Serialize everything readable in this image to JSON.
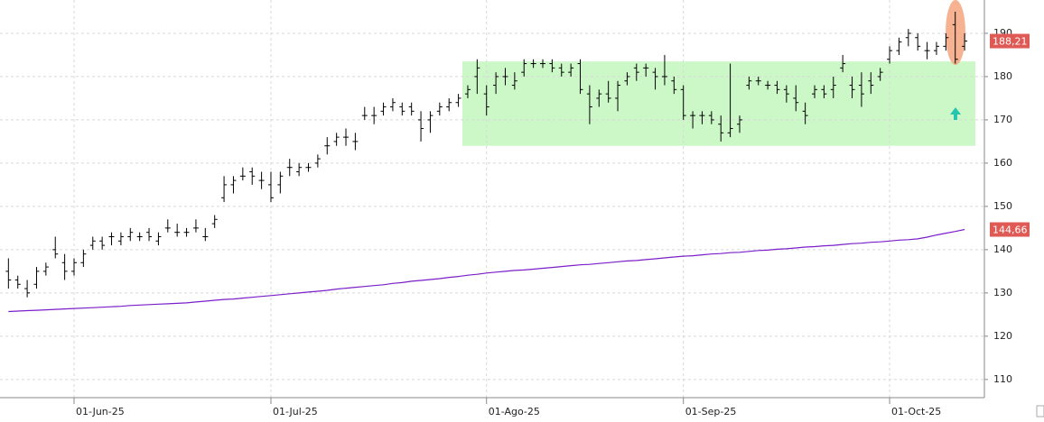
{
  "chart_data": {
    "type": "ohlc",
    "categories": [
      null,
      null,
      null,
      null,
      null,
      null,
      null,
      "01-Jun-25",
      null,
      null,
      null,
      null,
      null,
      null,
      null,
      null,
      null,
      null,
      null,
      null,
      null,
      null,
      null,
      null,
      null,
      null,
      null,
      null,
      "01-Jul-25",
      null,
      null,
      null,
      null,
      null,
      null,
      null,
      null,
      null,
      null,
      null,
      null,
      null,
      null,
      null,
      null,
      null,
      null,
      null,
      null,
      null,
      null,
      "01-Ago-25",
      null,
      null,
      null,
      null,
      null,
      null,
      null,
      null,
      null,
      null,
      null,
      null,
      null,
      null,
      null,
      null,
      null,
      null,
      null,
      null,
      "01-Sep-25",
      null,
      null,
      null,
      null,
      null,
      null,
      null,
      null,
      null,
      null,
      null,
      null,
      null,
      null,
      null,
      null,
      null,
      null,
      null,
      null,
      null,
      "01-Oct-25",
      null,
      null,
      null,
      null,
      null,
      null,
      null,
      null
    ],
    "open": [
      135,
      133,
      131,
      132,
      135,
      140,
      137,
      135,
      137,
      141,
      142,
      143,
      142,
      143,
      143,
      144,
      142,
      145,
      144,
      144,
      145,
      143,
      146,
      152,
      155,
      157,
      158,
      156,
      155,
      155,
      159,
      158,
      159,
      160,
      164,
      165,
      166,
      165,
      171,
      171,
      172,
      173,
      173,
      173,
      170,
      170,
      172,
      173,
      174,
      176,
      180,
      176,
      178,
      180,
      178,
      181,
      183,
      183,
      183,
      182,
      181,
      183,
      176,
      175,
      176,
      175,
      179,
      182,
      182,
      181,
      180,
      179,
      177,
      171,
      171,
      171,
      169,
      167,
      169,
      178,
      179,
      178,
      178,
      177,
      175,
      172,
      176,
      177,
      177,
      182,
      178,
      178,
      179,
      180,
      184,
      186,
      189,
      189,
      186,
      186,
      187,
      192,
      187
    ],
    "high": [
      138,
      134,
      133,
      136,
      137,
      143,
      139,
      138,
      140,
      143,
      143,
      144,
      144,
      145,
      144,
      145,
      144,
      147,
      146,
      145,
      147,
      145,
      148,
      157,
      157,
      159,
      159,
      158,
      158,
      158,
      161,
      160,
      160,
      162,
      166,
      167,
      168,
      167,
      173,
      173,
      174,
      175,
      174,
      174,
      172,
      172,
      174,
      175,
      176,
      178,
      184,
      178,
      181,
      182,
      181,
      184,
      184,
      184,
      184,
      183,
      183,
      184,
      178,
      177,
      179,
      179,
      181,
      183,
      183,
      182,
      185,
      180,
      178,
      172,
      172,
      172,
      171,
      183,
      171,
      180,
      180,
      179,
      179,
      178,
      178,
      174,
      178,
      178,
      180,
      185,
      180,
      181,
      181,
      182,
      187,
      189,
      191,
      190,
      188,
      188,
      190,
      195,
      190
    ],
    "low": [
      131,
      131,
      129,
      131,
      134,
      138,
      133,
      134,
      136,
      140,
      140,
      141,
      141,
      142,
      142,
      142,
      141,
      144,
      143,
      143,
      144,
      142,
      145,
      151,
      153,
      156,
      155,
      154,
      151,
      153,
      157,
      157,
      158,
      159,
      162,
      164,
      164,
      163,
      170,
      169,
      171,
      172,
      171,
      171,
      165,
      167,
      171,
      172,
      173,
      175,
      176,
      171,
      176,
      178,
      177,
      180,
      182,
      182,
      181,
      180,
      180,
      176,
      169,
      173,
      174,
      172,
      178,
      179,
      180,
      177,
      178,
      176,
      170,
      168,
      169,
      169,
      165,
      166,
      167,
      177,
      178,
      177,
      176,
      174,
      172,
      169,
      175,
      175,
      175,
      181,
      175,
      173,
      176,
      179,
      183,
      185,
      187,
      186,
      184,
      185,
      186,
      183,
      186
    ],
    "close": [
      133,
      132,
      130,
      135,
      136,
      139,
      135,
      137,
      139,
      142,
      141,
      143,
      143,
      144,
      143,
      143,
      143,
      145,
      144,
      144,
      145,
      143,
      147,
      155,
      156,
      157,
      157,
      156,
      152,
      157,
      159,
      159,
      159,
      161,
      164,
      166,
      166,
      165,
      171,
      171,
      173,
      174,
      172,
      172,
      168,
      171,
      173,
      174,
      175,
      177,
      182,
      173,
      180,
      180,
      179,
      183,
      183,
      183,
      182,
      181,
      182,
      177,
      173,
      176,
      175,
      178,
      180,
      181,
      182,
      180,
      180,
      177,
      171,
      171,
      171,
      170,
      167,
      168,
      170,
      179,
      179,
      178,
      177,
      176,
      174,
      171,
      177,
      176,
      178,
      183,
      177,
      176,
      178,
      181,
      186,
      188,
      190,
      187,
      186,
      187,
      189,
      184,
      188.21
    ],
    "color": "#000000",
    "moving_average": {
      "color": "#7a1fc9",
      "values": [
        125.7,
        125.8,
        125.9,
        126.0,
        126.1,
        126.2,
        126.3,
        126.4,
        126.5,
        126.6,
        126.7,
        126.8,
        126.9,
        127.1,
        127.2,
        127.3,
        127.4,
        127.5,
        127.6,
        127.7,
        127.9,
        128.1,
        128.3,
        128.5,
        128.6,
        128.8,
        129.0,
        129.2,
        129.4,
        129.6,
        129.8,
        130.0,
        130.2,
        130.4,
        130.6,
        130.9,
        131.1,
        131.3,
        131.5,
        131.7,
        131.9,
        132.2,
        132.4,
        132.7,
        132.9,
        133.1,
        133.3,
        133.6,
        133.8,
        134.1,
        134.3,
        134.6,
        134.8,
        135.0,
        135.2,
        135.3,
        135.5,
        135.7,
        135.9,
        136.1,
        136.3,
        136.5,
        136.6,
        136.8,
        137.0,
        137.2,
        137.4,
        137.5,
        137.7,
        137.9,
        138.1,
        138.3,
        138.5,
        138.6,
        138.8,
        139.0,
        139.1,
        139.3,
        139.4,
        139.6,
        139.8,
        139.9,
        140.1,
        140.2,
        140.4,
        140.6,
        140.7,
        140.9,
        141.0,
        141.2,
        141.4,
        141.5,
        141.7,
        141.8,
        142.0,
        142.2,
        142.3,
        142.5,
        142.9,
        143.4,
        143.8,
        144.2,
        144.66
      ]
    },
    "price_labels": [
      {
        "value": 188.21,
        "label": "188,21"
      },
      {
        "value": 144.66,
        "label": "144,66"
      }
    ],
    "price_label_color": "#e05a55",
    "highlight": {
      "ylim": [
        164,
        183.5
      ],
      "color": "#ccf8c8"
    },
    "ylim": [
      105.8,
      197.7
    ],
    "yticks": [
      110,
      120,
      130,
      140,
      150,
      160,
      170,
      180,
      190
    ],
    "grid": true
  }
}
